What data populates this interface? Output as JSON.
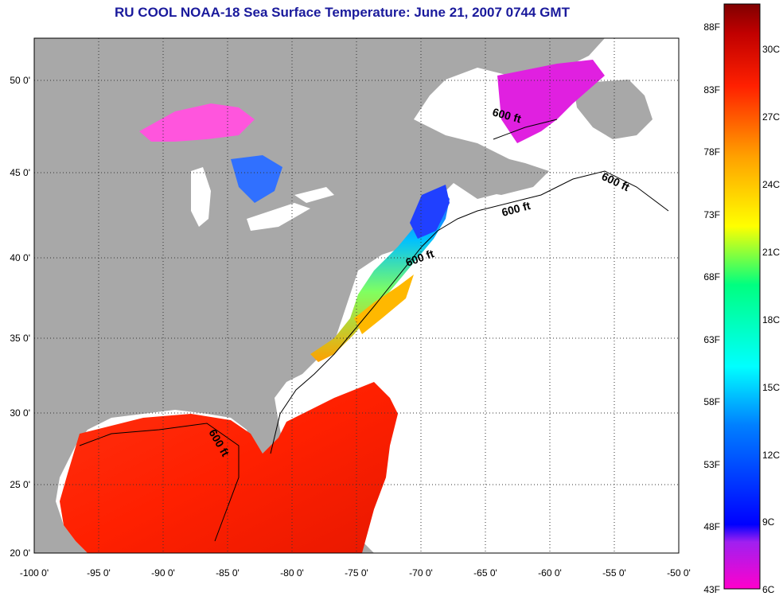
{
  "title": "RU COOL  NOAA-18  Sea Surface Temperature:  June 21, 2007 0744 GMT",
  "map": {
    "x_ticks": [
      "-100 0'",
      "-95 0'",
      "-90 0'",
      "-85 0'",
      "-80 0'",
      "-75 0'",
      "-70 0'",
      "-65 0'",
      "-60 0'",
      "-55 0'",
      "-50 0'"
    ],
    "y_ticks": [
      "50 0'",
      "45 0'",
      "40 0'",
      "35 0'",
      "30 0'",
      "25 0'",
      "20 0'"
    ],
    "contour_label": "600 ft",
    "colors": {
      "land": "#a8a8a8",
      "cloud": "#ffffff",
      "grid": "#333333"
    }
  },
  "colorbar": {
    "f_labels": [
      "88F",
      "83F",
      "78F",
      "73F",
      "68F",
      "63F",
      "58F",
      "53F",
      "48F",
      "43F"
    ],
    "c_labels": [
      "30C",
      "27C",
      "24C",
      "21C",
      "18C",
      "15C",
      "12C",
      "9C",
      "6C"
    ],
    "stops": [
      "#ff00cc",
      "#a020f0",
      "#0000ff",
      "#0080ff",
      "#00ffff",
      "#00ff80",
      "#ffff00",
      "#ffa000",
      "#ff2000",
      "#c00000",
      "#800000"
    ]
  }
}
